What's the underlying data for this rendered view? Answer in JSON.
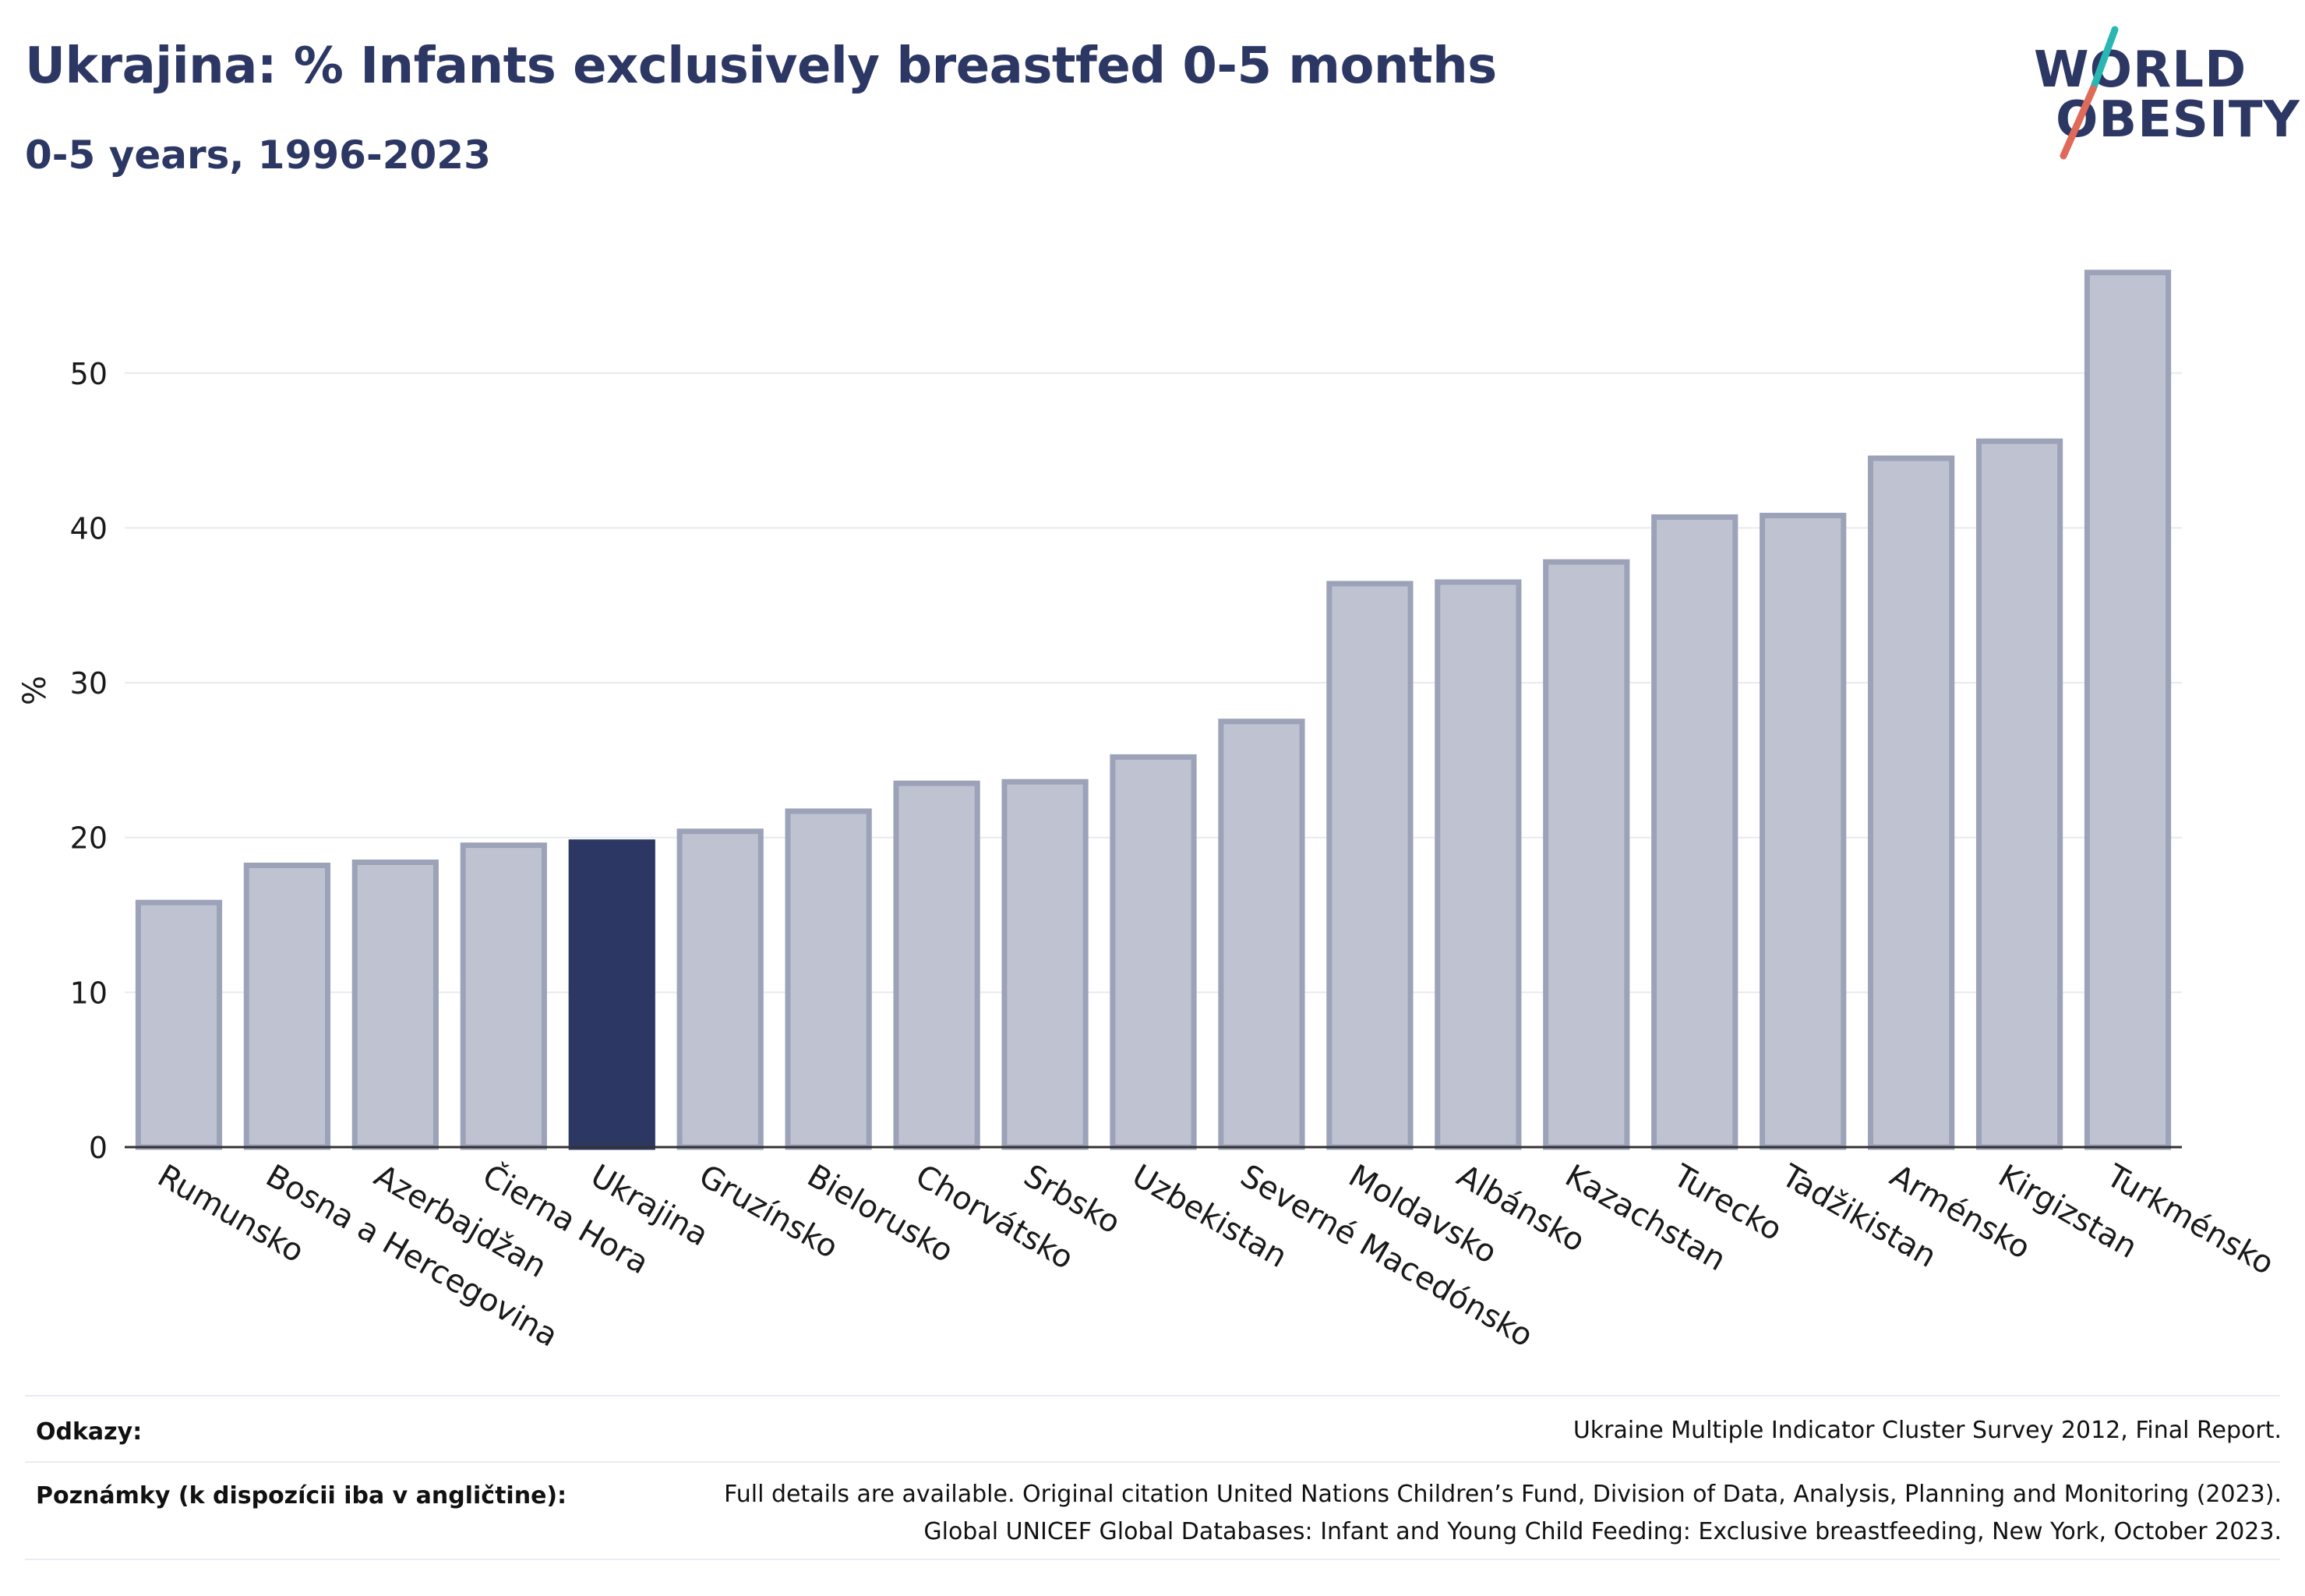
{
  "header": {
    "title": "Ukrajina: % Infants exclusively breastfed 0-5 months",
    "subtitle": "0-5 years, 1996-2023"
  },
  "logo": {
    "line1": "WORLD",
    "line2": "OBESITY",
    "accent_teal": "#2ab7b3",
    "accent_red": "#e06a5a"
  },
  "colors": {
    "bar": "#bfc3d1",
    "bar_border": "#9ca2b8",
    "highlight": "#2c3764",
    "grid": "#e8eaf0",
    "axis": "#333333"
  },
  "chart_data": {
    "type": "bar",
    "ylabel": "%",
    "ylim": [
      0,
      59
    ],
    "yticks": [
      0,
      10,
      20,
      30,
      40,
      50
    ],
    "highlight": "Ukrajina",
    "grid": true,
    "categories": [
      "Rumunsko",
      "Bosna a Hercegovina",
      "Azerbajdžan",
      "Čierna Hora",
      "Ukrajina",
      "Gruzínsko",
      "Bielorusko",
      "Chorvátsko",
      "Srbsko",
      "Uzbekistan",
      "Severné Macedónsko",
      "Moldavsko",
      "Albánsko",
      "Kazachstan",
      "Turecko",
      "Tadžikistan",
      "Arménsko",
      "Kirgizstan",
      "Turkménsko"
    ],
    "values": [
      15.8,
      18.2,
      18.4,
      19.5,
      19.7,
      20.4,
      21.7,
      23.5,
      23.6,
      25.2,
      27.5,
      36.4,
      36.5,
      37.8,
      40.7,
      40.8,
      44.5,
      45.6,
      56.5
    ]
  },
  "footer": {
    "refs_label": "Odkazy:",
    "refs_text": "Ukraine Multiple Indicator Cluster Survey 2012, Final Report.",
    "notes_label": "Poznámky (k dispozícii iba v angličtine):",
    "notes_line1": "Full details are available. Original citation United Nations Children’s Fund, Division of Data, Analysis, Planning and Monitoring (2023).",
    "notes_line2": "Global UNICEF Global Databases: Infant and Young Child Feeding: Exclusive breastfeeding, New York, October 2023."
  }
}
